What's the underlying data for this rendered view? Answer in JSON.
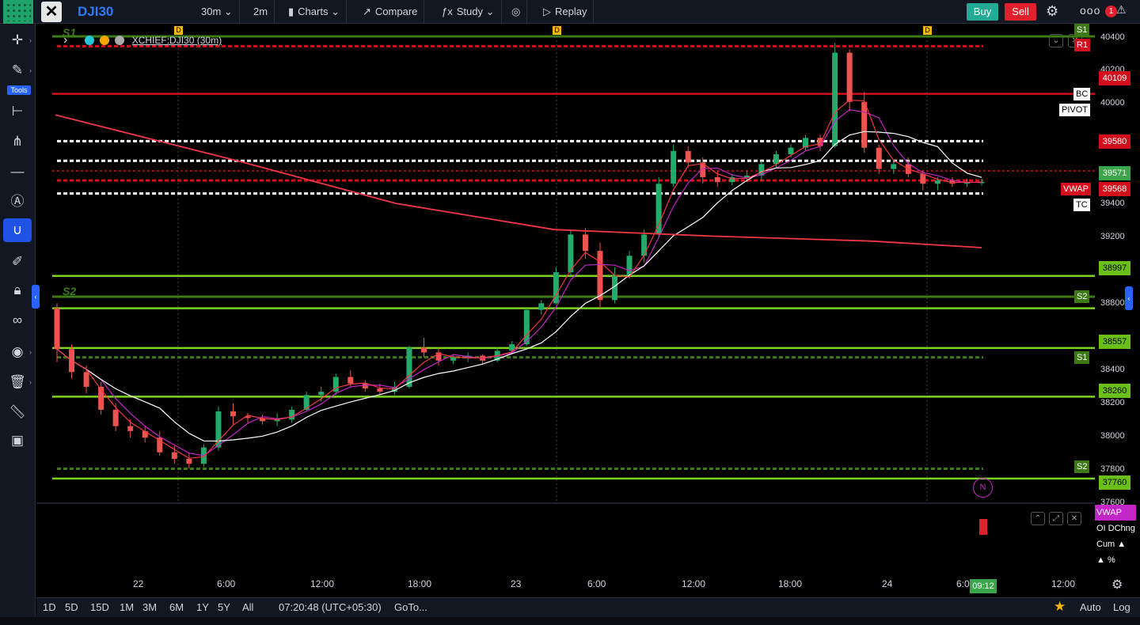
{
  "toolbar": {
    "symbol": "DJI30",
    "interval": "30m",
    "interval2": "2m",
    "charts_label": "Charts",
    "compare_label": "Compare",
    "study_label": "Study",
    "replay_label": "Replay",
    "buy_label": "Buy",
    "sell_label": "Sell",
    "more_label": "ooo",
    "notification_count": "1",
    "tools_label": "Tools"
  },
  "legend": {
    "title": "XCHIEF:DJI30 (30m)"
  },
  "markers": {
    "d_label": "D",
    "s1_label": "S1",
    "s2_label": "S2",
    "n_label": "N"
  },
  "price_axis": {
    "ticks": [
      "40400",
      "40200",
      "40000",
      "39400",
      "39200",
      "38800",
      "38400",
      "38200",
      "38000",
      "37800",
      "37600",
      "37600"
    ],
    "tags": {
      "r1": "R1",
      "p40109": "40109",
      "p39580": "39580",
      "p39571": "39571",
      "p39568": "39568",
      "p38997": "38997",
      "p38557": "38557",
      "p38260": "38260",
      "p37760": "37760"
    },
    "line_labels": {
      "s1_top": "S1",
      "bc": "BC",
      "pivot": "PIVOT",
      "vwap": "VWAP",
      "tc": "TC",
      "s2": "S2",
      "s1_mid": "S1",
      "s2_low": "S2"
    }
  },
  "time_axis": {
    "ticks": [
      "22",
      "6:00",
      "12:00",
      "18:00",
      "23",
      "6:00",
      "12:00",
      "18:00",
      "24",
      "6:0",
      "12:00"
    ],
    "current": "09:12"
  },
  "sub_pane": {
    "legend": [
      "VWAP",
      "OI DChng",
      "Cum ▲",
      "▲ %"
    ]
  },
  "bottom": {
    "ranges": [
      "1D",
      "5D",
      "15D",
      "1M",
      "3M",
      "6M",
      "1Y",
      "5Y",
      "All"
    ],
    "clock": "07:20:48 (UTC+05:30)",
    "goto": "GoTo...",
    "auto": "Auto",
    "log": "Log"
  },
  "colors": {
    "up": "#22ab6a",
    "down": "#ef5350",
    "pivot_green": "#7ed321",
    "resistance_red": "#d30f1d",
    "vwap": "#c126c6",
    "ma_white": "#ffffff",
    "ma_red": "#f23645"
  },
  "chart_data": {
    "type": "candlestick",
    "symbol": "XCHIEF:DJI30",
    "interval": "30m",
    "ylim": [
      37600,
      40450
    ],
    "levels": [
      {
        "label": "R1",
        "value": 40400,
        "style": "dashed",
        "color": "red"
      },
      {
        "label": "",
        "value": 40109,
        "style": "solid",
        "color": "red"
      },
      {
        "label": "BC",
        "value": 39820,
        "style": "dashed",
        "color": "white"
      },
      {
        "label": "PIVOT",
        "value": 39700,
        "style": "dashed",
        "color": "white"
      },
      {
        "label": "",
        "value": 39580,
        "style": "dashed",
        "color": "red"
      },
      {
        "label": "TC",
        "value": 39500,
        "style": "dashed",
        "color": "white"
      },
      {
        "label": "",
        "value": 38997,
        "style": "solid",
        "color": "green"
      },
      {
        "label": "S2",
        "value": 38800,
        "style": "solid",
        "color": "green"
      },
      {
        "label": "",
        "value": 38557,
        "style": "solid",
        "color": "green"
      },
      {
        "label": "S1",
        "value": 38500,
        "style": "dashed",
        "color": "green"
      },
      {
        "label": "",
        "value": 38260,
        "style": "solid",
        "color": "green"
      },
      {
        "label": "S2",
        "value": 37820,
        "style": "dashed",
        "color": "green"
      },
      {
        "label": "",
        "value": 37760,
        "style": "solid",
        "color": "green"
      }
    ],
    "candles": [
      [
        38800,
        38830,
        38470,
        38550
      ],
      [
        38550,
        38580,
        38370,
        38410
      ],
      [
        38410,
        38450,
        38280,
        38320
      ],
      [
        38320,
        38350,
        38150,
        38180
      ],
      [
        38180,
        38220,
        38050,
        38080
      ],
      [
        38080,
        38120,
        38010,
        38050
      ],
      [
        38050,
        38080,
        37980,
        38010
      ],
      [
        38010,
        38050,
        37900,
        37920
      ],
      [
        37920,
        37960,
        37850,
        37880
      ],
      [
        37880,
        37920,
        37820,
        37850
      ],
      [
        37850,
        37970,
        37830,
        37950
      ],
      [
        37950,
        38200,
        37930,
        38170
      ],
      [
        38170,
        38220,
        38090,
        38140
      ],
      [
        38140,
        38160,
        38100,
        38130
      ],
      [
        38130,
        38150,
        38090,
        38110
      ],
      [
        38110,
        38160,
        38080,
        38120
      ],
      [
        38120,
        38200,
        38100,
        38180
      ],
      [
        38180,
        38290,
        38170,
        38270
      ],
      [
        38270,
        38320,
        38230,
        38290
      ],
      [
        38290,
        38400,
        38270,
        38380
      ],
      [
        38380,
        38420,
        38320,
        38340
      ],
      [
        38340,
        38360,
        38290,
        38310
      ],
      [
        38310,
        38340,
        38270,
        38290
      ],
      [
        38290,
        38350,
        38270,
        38320
      ],
      [
        38320,
        38570,
        38310,
        38560
      ],
      [
        38560,
        38620,
        38500,
        38530
      ],
      [
        38530,
        38560,
        38450,
        38480
      ],
      [
        38480,
        38520,
        38460,
        38500
      ],
      [
        38500,
        38530,
        38470,
        38510
      ],
      [
        38510,
        38520,
        38460,
        38480
      ],
      [
        38480,
        38560,
        38470,
        38540
      ],
      [
        38540,
        38600,
        38530,
        38580
      ],
      [
        38580,
        38800,
        38570,
        38790
      ],
      [
        38790,
        38850,
        38760,
        38830
      ],
      [
        38830,
        39050,
        38820,
        39020
      ],
      [
        39020,
        39280,
        39000,
        39250
      ],
      [
        39250,
        39290,
        39100,
        39150
      ],
      [
        39150,
        39200,
        38800,
        38850
      ],
      [
        38850,
        39050,
        38830,
        39000
      ],
      [
        39000,
        39150,
        38980,
        39120
      ],
      [
        39120,
        39280,
        39080,
        39250
      ],
      [
        39250,
        39600,
        39230,
        39560
      ],
      [
        39560,
        39800,
        39540,
        39760
      ],
      [
        39760,
        39790,
        39660,
        39690
      ],
      [
        39690,
        39720,
        39560,
        39600
      ],
      [
        39600,
        39640,
        39540,
        39570
      ],
      [
        39570,
        39620,
        39550,
        39600
      ],
      [
        39600,
        39640,
        39570,
        39610
      ],
      [
        39610,
        39700,
        39580,
        39680
      ],
      [
        39680,
        39760,
        39660,
        39740
      ],
      [
        39740,
        39800,
        39720,
        39780
      ],
      [
        39780,
        39860,
        39760,
        39840
      ],
      [
        39840,
        39860,
        39760,
        39790
      ],
      [
        39790,
        40420,
        39780,
        40360
      ],
      [
        40360,
        40380,
        40000,
        40060
      ],
      [
        40060,
        40120,
        39750,
        39780
      ],
      [
        39780,
        39800,
        39620,
        39650
      ],
      [
        39650,
        39700,
        39620,
        39680
      ],
      [
        39680,
        39720,
        39600,
        39620
      ],
      [
        39620,
        39640,
        39520,
        39560
      ],
      [
        39560,
        39600,
        39520,
        39580
      ],
      [
        39580,
        39600,
        39540,
        39560
      ],
      [
        39560,
        39590,
        39540,
        39570
      ],
      [
        39570,
        39590,
        39550,
        39571
      ]
    ]
  }
}
